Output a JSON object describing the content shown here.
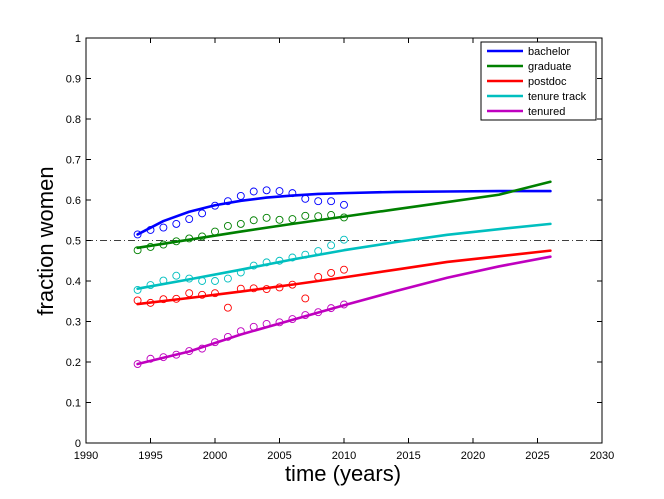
{
  "chart_data": {
    "type": "line",
    "xlabel": "time (years)",
    "ylabel": "fraction women",
    "xlim": [
      1990,
      2030
    ],
    "ylim": [
      0,
      1
    ],
    "xticks": [
      1990,
      1995,
      2000,
      2005,
      2010,
      2015,
      2020,
      2025,
      2030
    ],
    "xtick_labels": [
      "1990",
      "1995",
      "2000",
      "2005",
      "2010",
      "2015",
      "2020",
      "2025",
      "2030"
    ],
    "yticks": [
      0,
      0.1,
      0.2,
      0.3,
      0.4,
      0.5,
      0.6,
      0.7,
      0.8,
      0.9,
      1
    ],
    "ytick_labels": [
      "0",
      "0.1",
      "0.2",
      "0.3",
      "0.4",
      "0.5",
      "0.6",
      "0.7",
      "0.8",
      "0.9",
      "1"
    ],
    "grid": false,
    "legend_position": "top-right",
    "reference_line": {
      "y": 0.5,
      "style": "dash-dot",
      "color": "#000000"
    },
    "series": [
      {
        "name": "bachelor",
        "color": "#0000ff",
        "fit_x": [
          1994,
          1996,
          1998,
          2000,
          2002,
          2004,
          2006,
          2008,
          2010,
          2014,
          2018,
          2022,
          2026
        ],
        "fit_y": [
          0.515,
          0.548,
          0.571,
          0.587,
          0.598,
          0.606,
          0.611,
          0.615,
          0.617,
          0.62,
          0.621,
          0.622,
          0.622
        ],
        "obs_x": [
          1994,
          1995,
          1996,
          1997,
          1998,
          1999,
          2000,
          2001,
          2002,
          2003,
          2004,
          2005,
          2006,
          2007,
          2008,
          2009,
          2010
        ],
        "obs_y": [
          0.515,
          0.526,
          0.532,
          0.541,
          0.553,
          0.567,
          0.586,
          0.597,
          0.61,
          0.621,
          0.624,
          0.622,
          0.617,
          0.603,
          0.597,
          0.597,
          0.588
        ]
      },
      {
        "name": "graduate",
        "color": "#008000",
        "fit_x": [
          1994,
          1998,
          2002,
          2006,
          2010,
          2014,
          2018,
          2022,
          2026
        ],
        "fit_y": [
          0.482,
          0.502,
          0.522,
          0.541,
          0.559,
          0.577,
          0.595,
          0.613,
          0.645
        ],
        "obs_x": [
          1994,
          1995,
          1996,
          1997,
          1998,
          1999,
          2000,
          2001,
          2002,
          2003,
          2004,
          2005,
          2006,
          2007,
          2008,
          2009,
          2010
        ],
        "obs_y": [
          0.476,
          0.484,
          0.49,
          0.498,
          0.505,
          0.51,
          0.522,
          0.536,
          0.541,
          0.55,
          0.556,
          0.551,
          0.553,
          0.561,
          0.56,
          0.563,
          0.557
        ]
      },
      {
        "name": "postdoc",
        "color": "#ff0000",
        "fit_x": [
          1994,
          1998,
          2002,
          2006,
          2010,
          2014,
          2018,
          2022,
          2026
        ],
        "fit_y": [
          0.343,
          0.358,
          0.374,
          0.391,
          0.409,
          0.428,
          0.447,
          0.461,
          0.475
        ],
        "obs_x": [
          1994,
          1995,
          1996,
          1997,
          1998,
          1999,
          2000,
          2001,
          2002,
          2003,
          2004,
          2005,
          2006,
          2007,
          2008,
          2009,
          2010
        ],
        "obs_y": [
          0.352,
          0.346,
          0.355,
          0.356,
          0.37,
          0.366,
          0.37,
          0.334,
          0.381,
          0.382,
          0.38,
          0.384,
          0.391,
          0.357,
          0.41,
          0.42,
          0.428
        ]
      },
      {
        "name": "tenure track",
        "color": "#00bfbf",
        "fit_x": [
          1994,
          1998,
          2002,
          2006,
          2010,
          2014,
          2018,
          2022,
          2026
        ],
        "fit_y": [
          0.381,
          0.404,
          0.428,
          0.453,
          0.476,
          0.496,
          0.514,
          0.528,
          0.541
        ],
        "obs_x": [
          1994,
          1995,
          1996,
          1997,
          1998,
          1999,
          2000,
          2001,
          2002,
          2003,
          2004,
          2005,
          2006,
          2007,
          2008,
          2009,
          2010
        ],
        "obs_y": [
          0.378,
          0.39,
          0.401,
          0.413,
          0.406,
          0.4,
          0.4,
          0.406,
          0.421,
          0.438,
          0.446,
          0.45,
          0.458,
          0.465,
          0.474,
          0.488,
          0.502
        ]
      },
      {
        "name": "tenured",
        "color": "#bf00bf",
        "fit_x": [
          1994,
          1998,
          2002,
          2006,
          2010,
          2014,
          2018,
          2022,
          2026
        ],
        "fit_y": [
          0.195,
          0.226,
          0.268,
          0.304,
          0.34,
          0.375,
          0.408,
          0.436,
          0.46
        ],
        "obs_x": [
          1994,
          1995,
          1996,
          1997,
          1998,
          1999,
          2000,
          2001,
          2002,
          2003,
          2004,
          2005,
          2006,
          2007,
          2008,
          2009,
          2010
        ],
        "obs_y": [
          0.195,
          0.208,
          0.212,
          0.218,
          0.227,
          0.233,
          0.249,
          0.262,
          0.276,
          0.287,
          0.294,
          0.298,
          0.306,
          0.316,
          0.323,
          0.333,
          0.342
        ]
      }
    ]
  }
}
